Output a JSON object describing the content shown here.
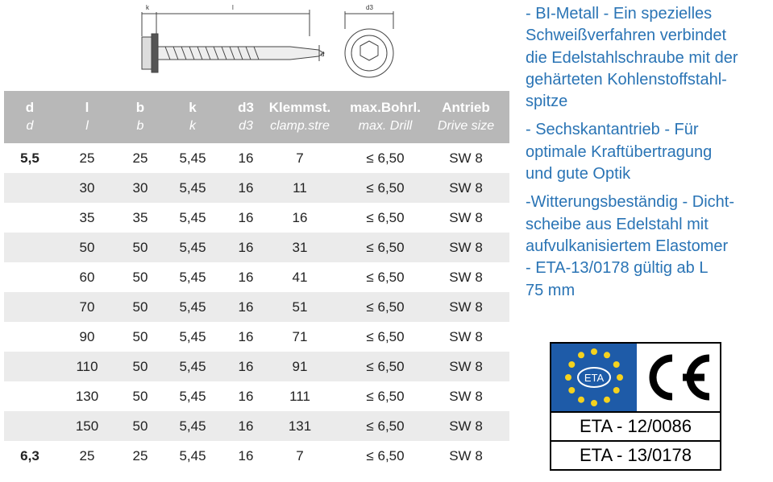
{
  "drawing": {
    "labels": [
      "k",
      "l",
      "d3",
      "d"
    ]
  },
  "table": {
    "columns": [
      {
        "label": "d",
        "sub": "d"
      },
      {
        "label": "l",
        "sub": "l"
      },
      {
        "label": "b",
        "sub": "b"
      },
      {
        "label": "k",
        "sub": "k"
      },
      {
        "label": "d3",
        "sub": "d3"
      },
      {
        "label": "Klemmst.",
        "sub": "clamp.stre"
      },
      {
        "label": "max.Bohrl.",
        "sub": "max. Drill"
      },
      {
        "label": "Antrieb",
        "sub": "Drive size"
      }
    ],
    "rows": [
      {
        "d": "5,5",
        "cells": [
          "25",
          "25",
          "5,45",
          "16",
          "7",
          "≤ 6,50",
          "SW 8"
        ]
      },
      {
        "cells": [
          "30",
          "30",
          "5,45",
          "16",
          "11",
          "≤ 6,50",
          "SW 8"
        ]
      },
      {
        "cells": [
          "35",
          "35",
          "5,45",
          "16",
          "16",
          "≤ 6,50",
          "SW 8"
        ]
      },
      {
        "cells": [
          "50",
          "50",
          "5,45",
          "16",
          "31",
          "≤ 6,50",
          "SW 8"
        ]
      },
      {
        "cells": [
          "60",
          "50",
          "5,45",
          "16",
          "41",
          "≤ 6,50",
          "SW 8"
        ]
      },
      {
        "cells": [
          "70",
          "50",
          "5,45",
          "16",
          "51",
          "≤ 6,50",
          "SW 8"
        ]
      },
      {
        "cells": [
          "90",
          "50",
          "5,45",
          "16",
          "71",
          "≤ 6,50",
          "SW 8"
        ]
      },
      {
        "cells": [
          "110",
          "50",
          "5,45",
          "16",
          "91",
          "≤ 6,50",
          "SW 8"
        ]
      },
      {
        "cells": [
          "130",
          "50",
          "5,45",
          "16",
          "111",
          "≤ 6,50",
          "SW 8"
        ]
      },
      {
        "cells": [
          "150",
          "50",
          "5,45",
          "16",
          "131",
          "≤ 6,50",
          "SW 8"
        ]
      },
      {
        "d": "6,3",
        "cells": [
          "25",
          "25",
          "5,45",
          "16",
          "7",
          "≤ 6,50",
          "SW 8"
        ]
      }
    ]
  },
  "description": [
    [
      "- BI-Metall - Ein spezielles",
      "Schweißverfahren verbindet",
      "die Edelstahlschraube mit der",
      "gehärteten Kohlenstoffstahl-",
      "spitze"
    ],
    [
      "- Sechskantantrieb - Für",
      "optimale Kraftübertragung",
      "und gute Optik"
    ],
    [
      "-Witterungsbeständig - Dicht-",
      "scheibe aus Edelstahl mit",
      "aufvulkanisiertem Elastomer",
      "- ETA-13/0178 gültig ab L",
      "75 mm"
    ]
  ],
  "badge": {
    "logo": "ETA",
    "approvals": [
      "ETA - 12/0086",
      "ETA - 13/0178"
    ]
  }
}
